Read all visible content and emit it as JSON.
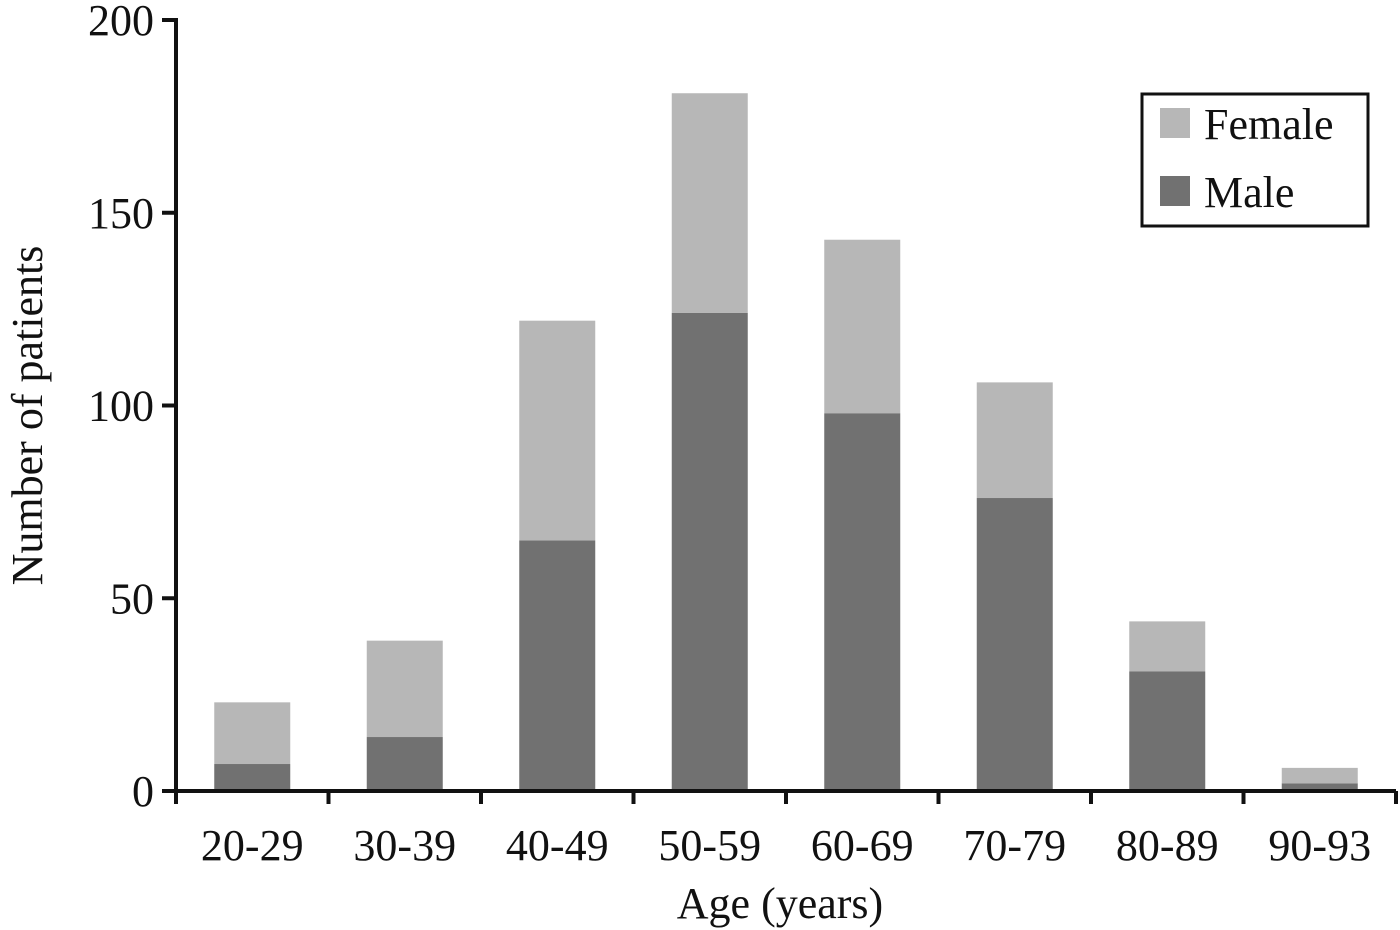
{
  "chart_data": {
    "type": "bar",
    "stacked": true,
    "categories": [
      "20-29",
      "30-39",
      "40-49",
      "50-59",
      "60-69",
      "70-79",
      "80-89",
      "90-93"
    ],
    "series": [
      {
        "name": "Male",
        "color": "#717171",
        "values": [
          7,
          14,
          65,
          124,
          98,
          76,
          31,
          2
        ]
      },
      {
        "name": "Female",
        "color": "#b7b7b7",
        "values": [
          16,
          25,
          57,
          57,
          45,
          30,
          13,
          4
        ]
      }
    ],
    "xlabel": "Age (years)",
    "ylabel": "Number of patients",
    "ylim": [
      0,
      200
    ],
    "yticks": [
      0,
      50,
      100,
      150,
      200
    ],
    "grid": false,
    "legend": {
      "position": "top-right",
      "entries": [
        "Female",
        "Male"
      ]
    }
  }
}
